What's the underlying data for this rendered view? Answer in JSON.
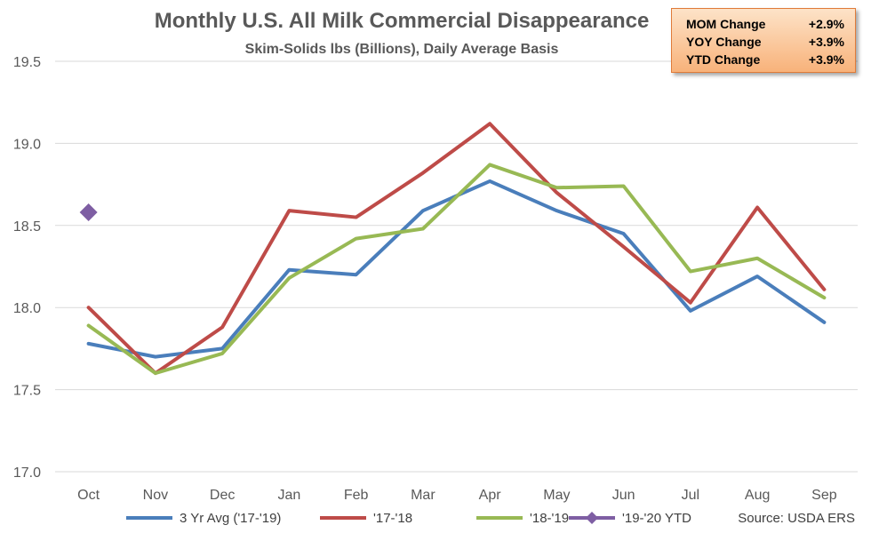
{
  "chart_data": {
    "type": "line",
    "title": "Monthly U.S. All Milk Commercial Disappearance",
    "subtitle": "Skim-Solids lbs (Billions), Daily Average Basis",
    "categories": [
      "Oct",
      "Nov",
      "Dec",
      "Jan",
      "Feb",
      "Mar",
      "Apr",
      "May",
      "Jun",
      "Jul",
      "Aug",
      "Sep"
    ],
    "ylim": [
      17.0,
      19.5
    ],
    "yticks": [
      "17.0",
      "17.5",
      "18.0",
      "18.5",
      "19.0",
      "19.5"
    ],
    "grid": true,
    "legend_position": "bottom",
    "series": [
      {
        "name": "3 Yr Avg ('17-'19)",
        "color": "#4a7ebb",
        "marker": "none",
        "values": [
          17.78,
          17.7,
          17.75,
          18.23,
          18.2,
          18.59,
          18.77,
          18.59,
          18.45,
          17.98,
          18.19,
          17.91
        ]
      },
      {
        "name": "'17-'18",
        "color": "#be4b48",
        "marker": "none",
        "values": [
          18.0,
          17.6,
          17.88,
          18.59,
          18.55,
          18.82,
          19.12,
          18.7,
          18.37,
          18.03,
          18.61,
          18.11
        ]
      },
      {
        "name": "'18-'19",
        "color": "#98b954",
        "marker": "none",
        "values": [
          17.89,
          17.6,
          17.72,
          18.18,
          18.42,
          18.48,
          18.87,
          18.73,
          18.74,
          18.22,
          18.3,
          18.06
        ]
      },
      {
        "name": "'19-'20 YTD",
        "color": "#7e5ea3",
        "marker": "diamond",
        "values": [
          18.58,
          null,
          null,
          null,
          null,
          null,
          null,
          null,
          null,
          null,
          null,
          null
        ]
      }
    ],
    "source": "Source: USDA ERS",
    "stats": [
      {
        "label": "MOM Change",
        "value": "+2.9%"
      },
      {
        "label": "YOY Change",
        "value": "+3.9%"
      },
      {
        "label": "YTD Change",
        "value": "+3.9%"
      }
    ]
  }
}
